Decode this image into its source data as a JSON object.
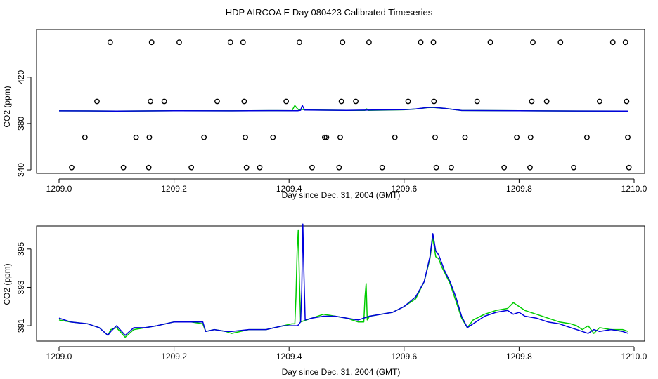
{
  "title": "HDP AIRCOA E  Day 080423  Calibrated Timeseries",
  "chart_data": [
    {
      "type": "scatter+line",
      "xlabel": "Day since Dec. 31, 2004 (GMT)",
      "ylabel": "CO2 (ppm)",
      "xlim": [
        1209.0,
        1210.0
      ],
      "ylim": [
        337,
        461
      ],
      "x_ticks": [
        1209.0,
        1209.2,
        1209.4,
        1209.6,
        1209.8,
        1210.0
      ],
      "x_tick_labels": [
        "1209.0",
        "1209.2",
        "1209.4",
        "1209.6",
        "1209.8",
        "1210.0"
      ],
      "y_ticks": [
        340,
        380,
        420
      ],
      "y_tick_labels": [
        "340",
        "380",
        "420"
      ],
      "grid": false,
      "colors": {
        "green": "#00cc00",
        "blue": "#0000dd",
        "markers": "#000000"
      },
      "markers": [
        {
          "x": 1209.022,
          "y": 342
        },
        {
          "x": 1209.045,
          "y": 368
        },
        {
          "x": 1209.066,
          "y": 399
        },
        {
          "x": 1209.089,
          "y": 450
        },
        {
          "x": 1209.112,
          "y": 342
        },
        {
          "x": 1209.134,
          "y": 368
        },
        {
          "x": 1209.156,
          "y": 342
        },
        {
          "x": 1209.157,
          "y": 368
        },
        {
          "x": 1209.159,
          "y": 399
        },
        {
          "x": 1209.161,
          "y": 450
        },
        {
          "x": 1209.183,
          "y": 399
        },
        {
          "x": 1209.209,
          "y": 450
        },
        {
          "x": 1209.23,
          "y": 342
        },
        {
          "x": 1209.252,
          "y": 368
        },
        {
          "x": 1209.275,
          "y": 399
        },
        {
          "x": 1209.298,
          "y": 450
        },
        {
          "x": 1209.32,
          "y": 450
        },
        {
          "x": 1209.322,
          "y": 399
        },
        {
          "x": 1209.324,
          "y": 368
        },
        {
          "x": 1209.326,
          "y": 342
        },
        {
          "x": 1209.349,
          "y": 342
        },
        {
          "x": 1209.372,
          "y": 368
        },
        {
          "x": 1209.395,
          "y": 399
        },
        {
          "x": 1209.418,
          "y": 450
        },
        {
          "x": 1209.44,
          "y": 342
        },
        {
          "x": 1209.462,
          "y": 368
        },
        {
          "x": 1209.465,
          "y": 368
        },
        {
          "x": 1209.487,
          "y": 342
        },
        {
          "x": 1209.489,
          "y": 368
        },
        {
          "x": 1209.491,
          "y": 399
        },
        {
          "x": 1209.493,
          "y": 450
        },
        {
          "x": 1209.516,
          "y": 399
        },
        {
          "x": 1209.539,
          "y": 450
        },
        {
          "x": 1209.562,
          "y": 342
        },
        {
          "x": 1209.584,
          "y": 368
        },
        {
          "x": 1209.607,
          "y": 399
        },
        {
          "x": 1209.629,
          "y": 450
        },
        {
          "x": 1209.651,
          "y": 450
        },
        {
          "x": 1209.652,
          "y": 399
        },
        {
          "x": 1209.654,
          "y": 368
        },
        {
          "x": 1209.656,
          "y": 342
        },
        {
          "x": 1209.682,
          "y": 342
        },
        {
          "x": 1209.706,
          "y": 368
        },
        {
          "x": 1209.727,
          "y": 399
        },
        {
          "x": 1209.75,
          "y": 450
        },
        {
          "x": 1209.774,
          "y": 342
        },
        {
          "x": 1209.796,
          "y": 368
        },
        {
          "x": 1209.819,
          "y": 342
        },
        {
          "x": 1209.82,
          "y": 368
        },
        {
          "x": 1209.822,
          "y": 399
        },
        {
          "x": 1209.824,
          "y": 450
        },
        {
          "x": 1209.848,
          "y": 399
        },
        {
          "x": 1209.872,
          "y": 450
        },
        {
          "x": 1209.895,
          "y": 342
        },
        {
          "x": 1209.918,
          "y": 368
        },
        {
          "x": 1209.94,
          "y": 399
        },
        {
          "x": 1209.963,
          "y": 450
        },
        {
          "x": 1209.985,
          "y": 450
        },
        {
          "x": 1209.987,
          "y": 399
        },
        {
          "x": 1209.989,
          "y": 368
        },
        {
          "x": 1209.991,
          "y": 342
        }
      ],
      "series": [
        {
          "color": "green",
          "x": [
            1209.0,
            1209.1,
            1209.2,
            1209.3,
            1209.38,
            1209.405,
            1209.41,
            1209.414,
            1209.418,
            1209.42,
            1209.43,
            1209.5,
            1209.532,
            1209.535,
            1209.538,
            1209.6,
            1209.62,
            1209.64,
            1209.65,
            1209.67,
            1209.7,
            1209.8,
            1209.9,
            1209.99
          ],
          "y": [
            390.9,
            390.7,
            391.0,
            390.9,
            391.1,
            391.0,
            395.5,
            393.0,
            391.3,
            392.2,
            391.7,
            391.3,
            391.3,
            392.5,
            391.3,
            391.8,
            392.4,
            393.6,
            393.8,
            393.0,
            391.2,
            391.0,
            390.8,
            390.7
          ]
        },
        {
          "color": "blue",
          "x": [
            1209.0,
            1209.1,
            1209.2,
            1209.3,
            1209.38,
            1209.415,
            1209.42,
            1209.423,
            1209.427,
            1209.43,
            1209.5,
            1209.6,
            1209.62,
            1209.64,
            1209.65,
            1209.67,
            1209.7,
            1209.8,
            1209.9,
            1209.99
          ],
          "y": [
            390.9,
            390.7,
            391.0,
            390.9,
            391.1,
            391.0,
            391.4,
            395.6,
            391.6,
            391.6,
            391.3,
            391.9,
            392.5,
            393.7,
            393.9,
            393.0,
            391.2,
            391.0,
            390.8,
            390.7
          ]
        }
      ]
    },
    {
      "type": "line",
      "xlabel": "Day since Dec. 31, 2004 (GMT)",
      "ylabel": "CO2 (ppm)",
      "xlim": [
        1209.0,
        1210.0
      ],
      "ylim": [
        390.2,
        396.2
      ],
      "x_ticks": [
        1209.0,
        1209.2,
        1209.4,
        1209.6,
        1209.8,
        1210.0
      ],
      "x_tick_labels": [
        "1209.0",
        "1209.2",
        "1209.4",
        "1209.6",
        "1209.8",
        "1210.0"
      ],
      "y_ticks": [
        391,
        393,
        395
      ],
      "y_tick_labels": [
        "391",
        "393",
        "395"
      ],
      "grid": false,
      "colors": {
        "green": "#00cc00",
        "blue": "#0000dd"
      },
      "series": [
        {
          "color": "green",
          "x": [
            1209.0,
            1209.02,
            1209.05,
            1209.07,
            1209.085,
            1209.09,
            1209.1,
            1209.115,
            1209.13,
            1209.15,
            1209.17,
            1209.2,
            1209.23,
            1209.25,
            1209.255,
            1209.27,
            1209.29,
            1209.3,
            1209.33,
            1209.36,
            1209.39,
            1209.405,
            1209.41,
            1209.412,
            1209.414,
            1209.416,
            1209.418,
            1209.42,
            1209.44,
            1209.46,
            1209.48,
            1209.5,
            1209.52,
            1209.53,
            1209.532,
            1209.534,
            1209.536,
            1209.54,
            1209.56,
            1209.58,
            1209.6,
            1209.62,
            1209.635,
            1209.645,
            1209.65,
            1209.655,
            1209.66,
            1209.665,
            1209.67,
            1209.68,
            1209.69,
            1209.7,
            1209.71,
            1209.72,
            1209.74,
            1209.76,
            1209.78,
            1209.79,
            1209.8,
            1209.81,
            1209.83,
            1209.85,
            1209.87,
            1209.89,
            1209.9,
            1209.91,
            1209.92,
            1209.93,
            1209.94,
            1209.96,
            1209.98,
            1209.99
          ],
          "y": [
            391.3,
            391.2,
            391.1,
            390.9,
            390.5,
            390.8,
            390.9,
            390.4,
            390.8,
            390.9,
            391.0,
            391.2,
            391.2,
            391.1,
            390.7,
            390.8,
            390.7,
            390.6,
            390.8,
            390.8,
            391.0,
            391.1,
            391.1,
            392.5,
            394.9,
            396.0,
            393.4,
            391.2,
            391.4,
            391.6,
            391.5,
            391.4,
            391.2,
            391.2,
            392.5,
            393.2,
            391.3,
            391.5,
            391.6,
            391.7,
            392.0,
            392.4,
            393.3,
            394.5,
            395.6,
            394.6,
            394.5,
            394.1,
            393.8,
            393.2,
            392.3,
            391.4,
            390.9,
            391.3,
            391.6,
            391.8,
            391.9,
            392.2,
            392.0,
            391.8,
            391.6,
            391.4,
            391.2,
            391.1,
            391.0,
            390.8,
            391.0,
            390.6,
            390.9,
            390.8,
            390.8,
            390.7
          ]
        },
        {
          "color": "blue",
          "x": [
            1209.0,
            1209.02,
            1209.05,
            1209.07,
            1209.085,
            1209.09,
            1209.1,
            1209.115,
            1209.13,
            1209.15,
            1209.17,
            1209.2,
            1209.23,
            1209.25,
            1209.255,
            1209.27,
            1209.29,
            1209.3,
            1209.33,
            1209.36,
            1209.39,
            1209.405,
            1209.415,
            1209.42,
            1209.422,
            1209.424,
            1209.426,
            1209.428,
            1209.44,
            1209.46,
            1209.48,
            1209.5,
            1209.52,
            1209.54,
            1209.56,
            1209.58,
            1209.6,
            1209.62,
            1209.635,
            1209.645,
            1209.65,
            1209.655,
            1209.66,
            1209.665,
            1209.67,
            1209.68,
            1209.69,
            1209.7,
            1209.71,
            1209.72,
            1209.74,
            1209.76,
            1209.78,
            1209.79,
            1209.8,
            1209.81,
            1209.83,
            1209.85,
            1209.87,
            1209.89,
            1209.9,
            1209.91,
            1209.92,
            1209.93,
            1209.94,
            1209.96,
            1209.98,
            1209.99
          ],
          "y": [
            391.4,
            391.2,
            391.1,
            390.9,
            390.5,
            390.7,
            391.0,
            390.5,
            390.9,
            390.9,
            391.0,
            391.2,
            391.2,
            391.2,
            390.7,
            390.8,
            390.7,
            390.7,
            390.8,
            390.8,
            391.0,
            391.0,
            391.0,
            391.2,
            392.8,
            396.3,
            393.5,
            391.3,
            391.4,
            391.5,
            391.5,
            391.4,
            391.3,
            391.5,
            391.6,
            391.7,
            392.0,
            392.5,
            393.3,
            394.6,
            395.8,
            394.9,
            394.7,
            394.3,
            393.9,
            393.3,
            392.5,
            391.5,
            390.9,
            391.1,
            391.5,
            391.7,
            391.8,
            391.6,
            391.7,
            391.5,
            391.4,
            391.2,
            391.1,
            390.9,
            390.8,
            390.7,
            390.6,
            390.8,
            390.7,
            390.8,
            390.7,
            390.6
          ]
        }
      ]
    }
  ]
}
